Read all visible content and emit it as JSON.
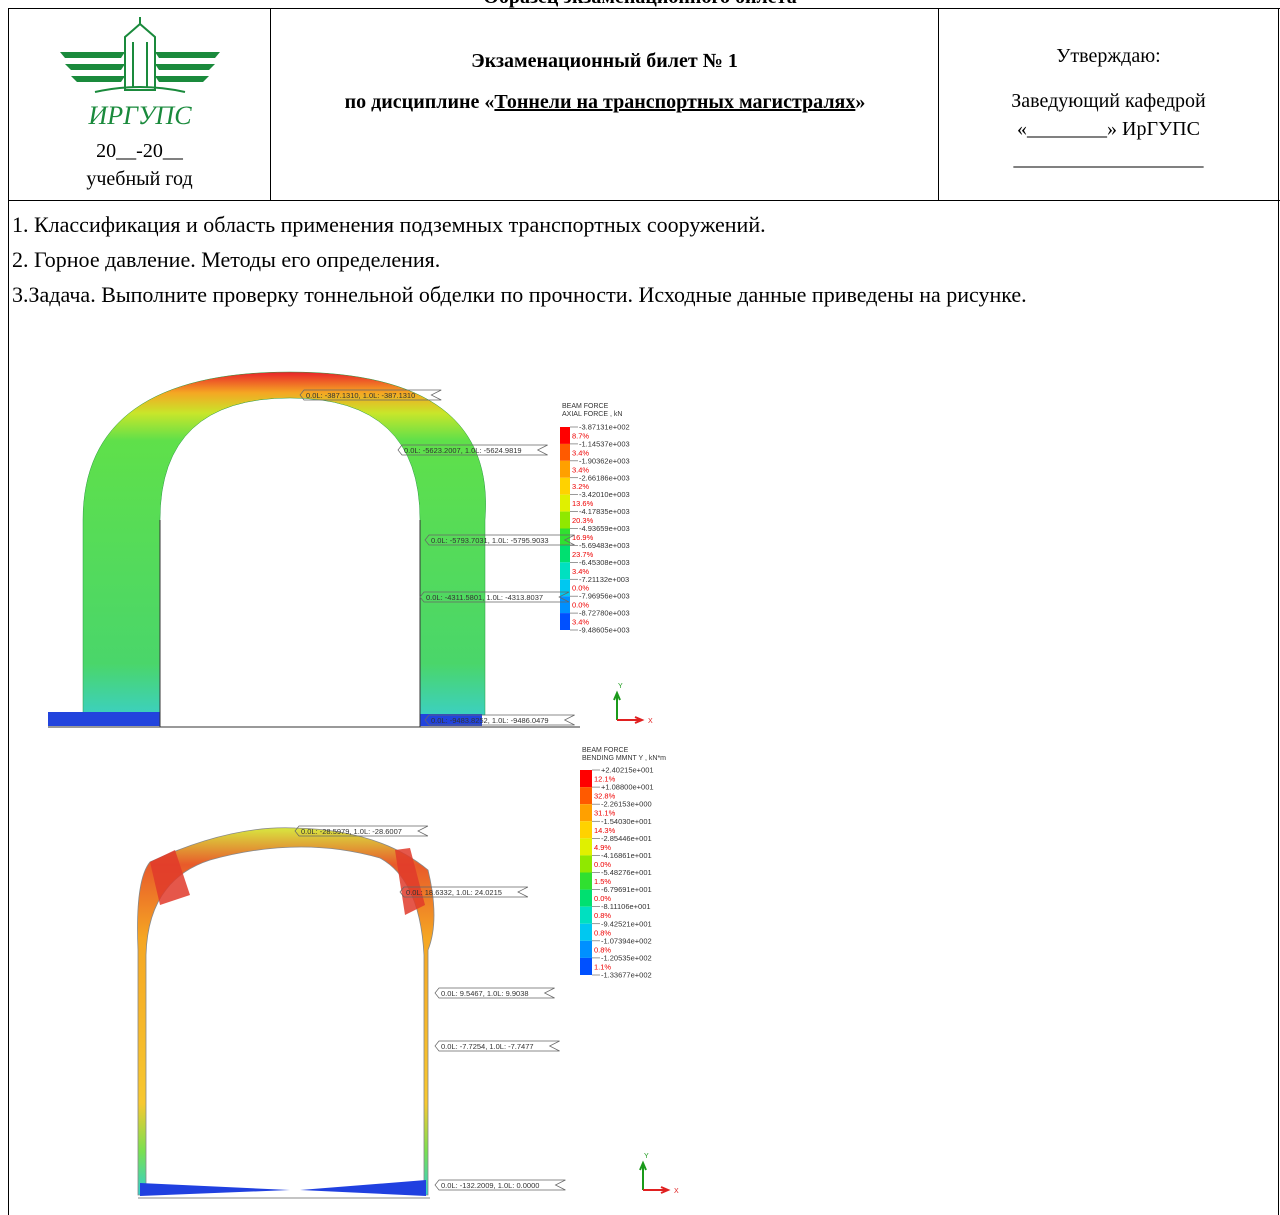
{
  "header": {
    "caption": "Образец экзаменационного билета",
    "logo_text": "ИРГУПС",
    "year": "20__-20__",
    "year_label": "учебный год",
    "ticket": "Экзаменационный билет № 1",
    "discipline_prefix": "по дисциплине «",
    "discipline": "Тоннели на транспортных магистралях",
    "discipline_suffix": "»",
    "approve": "Утверждаю:",
    "head": "Заведующий кафедрой",
    "department": "«________» ИрГУПС",
    "signature": "___________________"
  },
  "questions": [
    "1. Классификация и область применения подземных транспортных сооружений.",
    "2. Горное давление. Методы его определения.",
    "3.Задача. Выполните проверку тоннельной обделки по прочности. Исходные данные приведены на рисунке."
  ],
  "figures": [
    {
      "legend_title": [
        "BEAM FORCE",
        "AXIAL FORCE , kN"
      ],
      "legend_values": [
        "-3.87131e+002",
        "-1.14537e+003",
        "-1.90362e+003",
        "-2.66186e+003",
        "-3.42010e+003",
        "-4.17835e+003",
        "-4.93659e+003",
        "-5.69483e+003",
        "-6.45308e+003",
        "-7.21132e+003",
        "-7.96956e+003",
        "-8.72780e+003",
        "-9.48605e+003"
      ],
      "legend_percents": [
        "8.7%",
        "3.4%",
        "3.4%",
        "3.2%",
        "13.6%",
        "20.3%",
        "16.9%",
        "23.7%",
        "3.4%",
        "0.0%",
        "0.0%",
        "3.4%"
      ],
      "annotations": [
        "0.0L: -387.1310, 1.0L: -387.1310",
        "0.0L: -5623.2007, 1.0L: -5624.9819",
        "0.0L: -5793.7031, 1.0L: -5795.9033",
        "0.0L: -4311.5801, 1.0L: -4313.8037",
        "0.0L: -9483.8252, 1.0L: -9486.0479"
      ],
      "axis_y": "Y",
      "axis_x": "X"
    },
    {
      "legend_title": [
        "BEAM FORCE",
        "BENDING MMNT Y , kN*m"
      ],
      "legend_values": [
        "+2.40215e+001",
        "+1.08800e+001",
        "-2.26153e+000",
        "-1.54030e+001",
        "-2.85446e+001",
        "-4.16861e+001",
        "-5.48276e+001",
        "-6.79691e+001",
        "-8.11106e+001",
        "-9.42521e+001",
        "-1.07394e+002",
        "-1.20535e+002",
        "-1.33677e+002"
      ],
      "legend_percents": [
        "12.1%",
        "32.8%",
        "31.1%",
        "14.3%",
        "4.9%",
        "0.0%",
        "1.5%",
        "0.0%",
        "0.8%",
        "0.8%",
        "0.8%",
        "1.1%"
      ],
      "annotations": [
        "0.0L: -28.5979, 1.0L: -28.6007",
        "0.0L: 18.6332, 1.0L: 24.0215",
        "0.0L: 9.5467, 1.0L: 9.9038",
        "0.0L: -7.7254, 1.0L: -7.7477",
        "0.0L: -132.2009, 1.0L: 0.0000"
      ],
      "axis_y": "Y",
      "axis_x": "X"
    }
  ]
}
